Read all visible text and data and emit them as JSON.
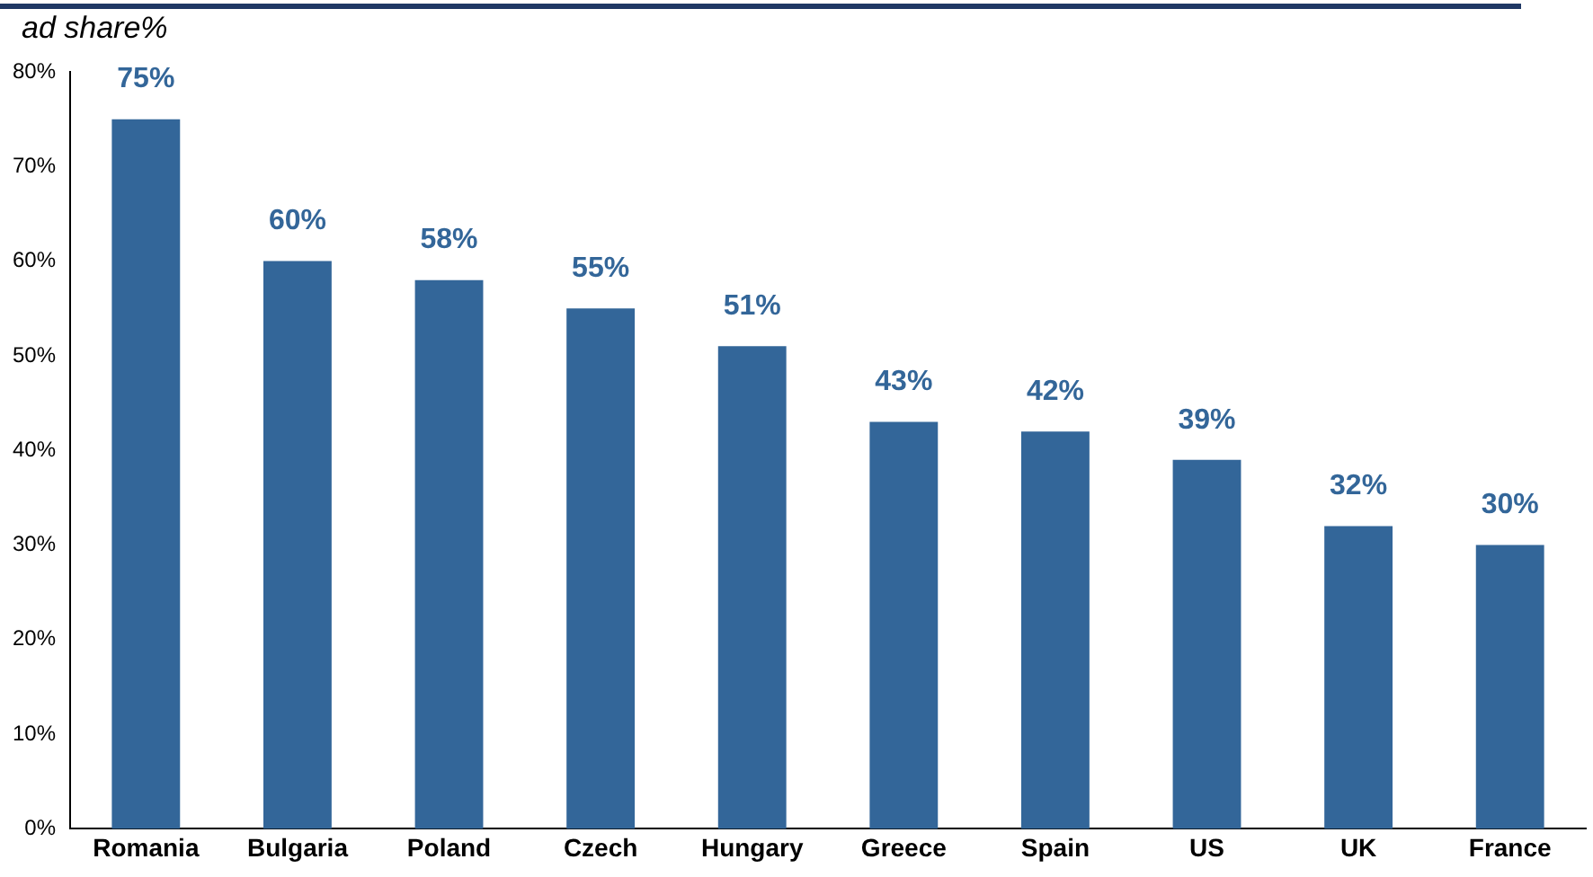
{
  "chart_data": {
    "type": "bar",
    "title": "ad share%",
    "categories": [
      "Romania",
      "Bulgaria",
      "Poland",
      "Czech",
      "Hungary",
      "Greece",
      "Spain",
      "US",
      "UK",
      "France"
    ],
    "values": [
      75,
      60,
      58,
      55,
      51,
      43,
      42,
      39,
      32,
      30
    ],
    "value_labels": [
      "75%",
      "60%",
      "58%",
      "55%",
      "51%",
      "43%",
      "42%",
      "39%",
      "32%",
      "30%"
    ],
    "color": "#336699",
    "ylim": [
      0,
      80
    ],
    "yticks": [
      {
        "value": 0,
        "label": "0%"
      },
      {
        "value": 10,
        "label": "10%"
      },
      {
        "value": 20,
        "label": "20%"
      },
      {
        "value": 30,
        "label": "30%"
      },
      {
        "value": 40,
        "label": "40%"
      },
      {
        "value": 50,
        "label": "50%"
      },
      {
        "value": 60,
        "label": "60%"
      },
      {
        "value": 70,
        "label": "70%"
      },
      {
        "value": 80,
        "label": "80%"
      }
    ],
    "grid": false,
    "legend": false
  }
}
